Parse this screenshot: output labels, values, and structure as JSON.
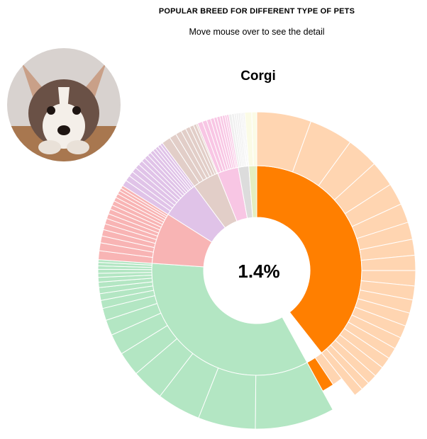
{
  "header": {
    "title": "POPULAR BREED FOR DIFFERENT TYPE OF PETS",
    "subtitle": "Move mouse over to see the detail"
  },
  "selection": {
    "breed": "Corgi",
    "percentage": "1.4%",
    "image_icon": "corgi-puppy-photo"
  },
  "chart_data": {
    "type": "sunburst",
    "highlighted": {
      "group": "dogs",
      "leaf_index": 33
    },
    "groups": [
      {
        "key": "dogs",
        "inner_value": 38.9,
        "inner_color": "#ff7f00",
        "outer_color": "#ffd5b1",
        "leaves": [
          8.2,
          6.6,
          4.8,
          3.9,
          3.3,
          2.9,
          2.6,
          2.4,
          2.3,
          2.3,
          2.1,
          2.0,
          2.0,
          1.9,
          1.8,
          1.7,
          1.7,
          1.6,
          1.5,
          1.3,
          1.4
        ],
        "extra_inner": [
          {
            "value": 1.2,
            "color": "#ffd5b1"
          },
          {
            "value": 1.4,
            "color": "#ff7f00"
          }
        ]
      },
      {
        "key": "cats",
        "inner_value": 33.6,
        "inner_color": "#b3e6c3",
        "outer_color": "#b3e6c3",
        "leaves": [
          11.8,
          8.5,
          6.5,
          4.8,
          3.6,
          3.1,
          2.3,
          1.8,
          1.2,
          1.0,
          0.9,
          0.8,
          0.7,
          0.6,
          0.6,
          0.5,
          0.5,
          0.4
        ]
      },
      {
        "key": "fish",
        "inner_value": 7.8,
        "inner_color": "#f8b4b4",
        "outer_color": "#f8b4b4",
        "leaves": [
          0.9,
          0.8,
          0.7,
          0.65,
          0.6,
          0.55,
          0.5,
          0.5,
          0.45,
          0.45,
          0.4,
          0.4,
          0.35,
          0.3,
          0.3
        ]
      },
      {
        "key": "birds",
        "inner_value": 5.8,
        "inner_color": "#e0c3e8",
        "outer_color": "#e0c3e8",
        "leaves": [
          0.6,
          0.55,
          0.5,
          0.5,
          0.45,
          0.45,
          0.4,
          0.4,
          0.35,
          0.35,
          0.3,
          0.3,
          0.3,
          0.25
        ]
      },
      {
        "key": "small_animals",
        "inner_value": 4.0,
        "inner_color": "#e2cec8",
        "outer_color": "#e2cec8",
        "leaves": [
          0.9,
          0.7,
          0.6,
          0.5,
          0.45,
          0.4,
          0.3,
          0.15
        ]
      },
      {
        "key": "reptiles",
        "inner_value": 3.2,
        "inner_color": "#f8c6e4",
        "outer_color": "#f8c6e4",
        "leaves": [
          0.5,
          0.45,
          0.4,
          0.35,
          0.3,
          0.3,
          0.25,
          0.25,
          0.2,
          0.2
        ]
      },
      {
        "key": "other",
        "inner_value": 1.6,
        "inner_color": "#dcdcdc",
        "outer_color": "#efefef",
        "leaves": [
          0.3,
          0.25,
          0.2,
          0.2,
          0.2,
          0.15,
          0.15,
          0.15
        ]
      },
      {
        "key": "misc",
        "inner_value": 1.2,
        "inner_color": "#e4eec0",
        "outer_color": "#fbfbe6",
        "leaves": [
          0.7,
          0.5
        ]
      }
    ]
  }
}
